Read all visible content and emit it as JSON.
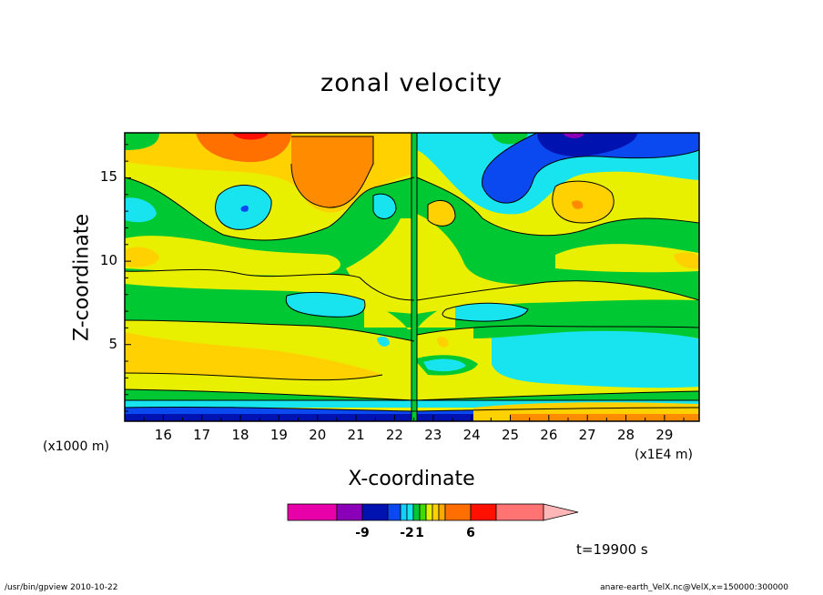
{
  "chart_data": {
    "type": "heatmap",
    "title": "zonal velocity",
    "xlabel": "X-coordinate",
    "ylabel": "Z-coordinate",
    "x_unit_label": "(x1E4 m)",
    "y_unit_label": "(x1000 m)",
    "x_ticks": [
      16,
      17,
      18,
      19,
      20,
      21,
      22,
      23,
      24,
      25,
      26,
      27,
      28,
      29
    ],
    "y_ticks": [
      5,
      10,
      15
    ],
    "xlim": [
      15,
      29.9
    ],
    "ylim": [
      0.4,
      17.7
    ],
    "colorbar": {
      "colors": [
        "#e800a8",
        "#8a00b8",
        "#0012b0",
        "#0a48f0",
        "#13cfff",
        "#18e4f0",
        "#00c832",
        "#3cdc00",
        "#e8f000",
        "#ffd100",
        "#ffa800",
        "#ff6e00",
        "#ff1000",
        "#ff7373",
        "#ffb6b6"
      ],
      "tick_labels": [
        "-9",
        "-2",
        "1",
        "6"
      ]
    },
    "note": "t=19900 s"
  },
  "footer": {
    "left": "/usr/bin/gpview   2010-10-22",
    "right": "anare-earth_VelX.nc@VelX,x=150000:300000"
  }
}
